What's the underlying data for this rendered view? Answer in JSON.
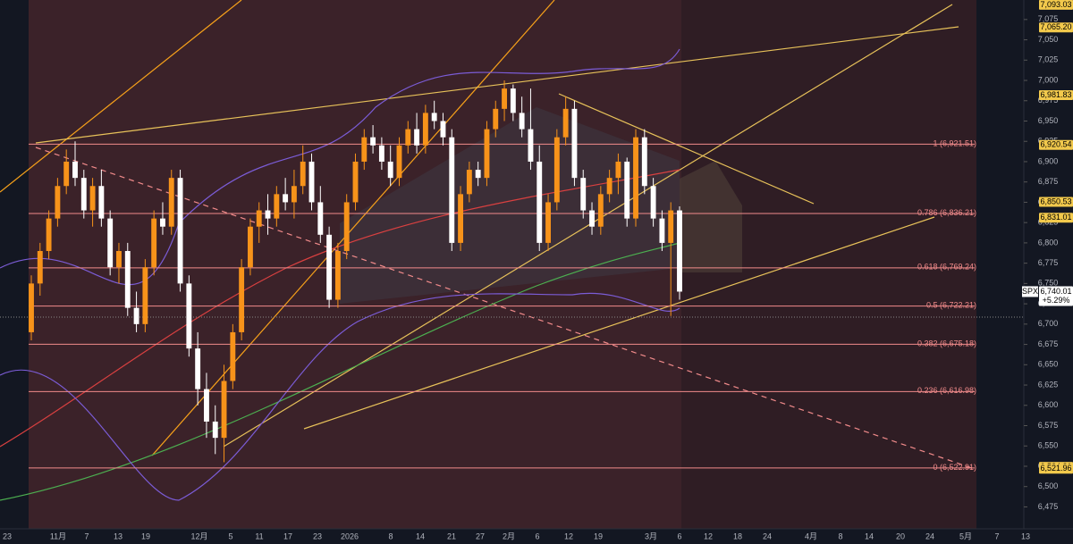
{
  "chart_data": {
    "type": "candlestick",
    "symbol": "SPX",
    "ylim": [
      6448,
      7099
    ],
    "yticks": [
      {
        "value": 6475,
        "label": "6,475"
      },
      {
        "value": 6500,
        "label": "6,500"
      },
      {
        "value": 6525,
        "label": "6,525"
      },
      {
        "value": 6550,
        "label": "6,550"
      },
      {
        "value": 6575,
        "label": "6,575"
      },
      {
        "value": 6600,
        "label": "6,600"
      },
      {
        "value": 6625,
        "label": "6,625"
      },
      {
        "value": 6650,
        "label": "6,650"
      },
      {
        "value": 6675,
        "label": "6,675"
      },
      {
        "value": 6700,
        "label": "6,700"
      },
      {
        "value": 6725,
        "label": "6,725"
      },
      {
        "value": 6750,
        "label": "6,750"
      },
      {
        "value": 6775,
        "label": "6,775"
      },
      {
        "value": 6800,
        "label": "6,800"
      },
      {
        "value": 6825,
        "label": "6,825"
      },
      {
        "value": 6850,
        "label": "6,850"
      },
      {
        "value": 6875,
        "label": "6,875"
      },
      {
        "value": 6900,
        "label": "6,900"
      },
      {
        "value": 6925,
        "label": "6,925"
      },
      {
        "value": 6950,
        "label": "6,950"
      },
      {
        "value": 6975,
        "label": "6,975"
      },
      {
        "value": 7000,
        "label": "7,000"
      },
      {
        "value": 7025,
        "label": "7,025"
      },
      {
        "value": 7050,
        "label": "7,050"
      },
      {
        "value": 7075,
        "label": "7,075"
      }
    ],
    "x_labels": [
      "23",
      "11月",
      "7",
      "13",
      "19",
      "12月",
      "5",
      "11",
      "17",
      "23",
      "2026",
      "8",
      "14",
      "21",
      "27",
      "2月",
      "6",
      "12",
      "19",
      "3月",
      "6",
      "12",
      "18",
      "24",
      "4月",
      "8",
      "14",
      "20",
      "24",
      "5月",
      "7",
      "13"
    ],
    "candles": {
      "open": [
        6690,
        6750,
        6790,
        6830,
        6870,
        6900,
        6880,
        6840,
        6870,
        6830,
        6770,
        6790,
        6720,
        6700,
        6770,
        6830,
        6820,
        6880,
        6750,
        6670,
        6620,
        6580,
        6560,
        6630,
        6690,
        6770,
        6820,
        6840,
        6830,
        6860,
        6850,
        6870,
        6900,
        6850,
        6810,
        6730,
        6790,
        6850,
        6900,
        6930,
        6920,
        6900,
        6880,
        6920,
        6940,
        6920,
        6960,
        6950,
        6930,
        6800,
        6860,
        6890,
        6880,
        6940,
        6965,
        6990,
        6960,
        6940,
        6900,
        6800,
        6850,
        6930,
        6965,
        6880,
        6840,
        6820,
        6860,
        6880,
        6900,
        6830,
        6930,
        6870,
        6830,
        6800,
        6840
      ],
      "high": [
        6760,
        6800,
        6840,
        6880,
        6915,
        6925,
        6890,
        6880,
        6890,
        6840,
        6800,
        6800,
        6740,
        6780,
        6840,
        6850,
        6890,
        6890,
        6760,
        6690,
        6640,
        6600,
        6650,
        6700,
        6780,
        6830,
        6850,
        6860,
        6870,
        6880,
        6890,
        6920,
        6910,
        6870,
        6820,
        6800,
        6860,
        6910,
        6940,
        6945,
        6930,
        6920,
        6930,
        6950,
        6960,
        6970,
        6975,
        6960,
        6940,
        6870,
        6900,
        6900,
        6950,
        6975,
        7000,
        6995,
        6980,
        6990,
        6920,
        6860,
        6940,
        6980,
        6975,
        6890,
        6850,
        6870,
        6890,
        6910,
        6905,
        6940,
        6940,
        6880,
        6840,
        6850,
        6845
      ],
      "low": [
        6680,
        6735,
        6780,
        6820,
        6860,
        6870,
        6830,
        6820,
        6820,
        6760,
        6750,
        6710,
        6690,
        6690,
        6760,
        6810,
        6810,
        6740,
        6660,
        6600,
        6560,
        6540,
        6530,
        6620,
        6680,
        6760,
        6800,
        6810,
        6820,
        6840,
        6830,
        6860,
        6840,
        6800,
        6720,
        6720,
        6780,
        6840,
        6890,
        6910,
        6890,
        6870,
        6870,
        6910,
        6910,
        6910,
        6940,
        6920,
        6790,
        6790,
        6850,
        6870,
        6870,
        6930,
        6950,
        6950,
        6930,
        6890,
        6790,
        6790,
        6840,
        6920,
        6870,
        6830,
        6810,
        6810,
        6850,
        6860,
        6820,
        6820,
        6860,
        6820,
        6790,
        6710,
        6730
      ],
      "close": [
        6750,
        6790,
        6830,
        6870,
        6900,
        6880,
        6840,
        6870,
        6830,
        6770,
        6790,
        6720,
        6700,
        6770,
        6830,
        6820,
        6880,
        6750,
        6670,
        6620,
        6580,
        6560,
        6630,
        6690,
        6770,
        6820,
        6840,
        6830,
        6860,
        6850,
        6870,
        6900,
        6850,
        6810,
        6730,
        6790,
        6850,
        6900,
        6930,
        6920,
        6900,
        6880,
        6920,
        6940,
        6920,
        6960,
        6950,
        6930,
        6800,
        6860,
        6890,
        6880,
        6940,
        6965,
        6990,
        6960,
        6940,
        6900,
        6800,
        6850,
        6930,
        6965,
        6880,
        6840,
        6820,
        6860,
        6880,
        6900,
        6830,
        6930,
        6870,
        6830,
        6800,
        6840,
        6740
      ]
    },
    "up_color": "#f7931a",
    "down_color": "#ffffff",
    "fib_levels": [
      {
        "label": "1 (6,921.51)",
        "value": 6921.51
      },
      {
        "label": "0.786 (6,836.21)",
        "value": 6836.21
      },
      {
        "label": "0.618 (6,769.24)",
        "value": 6769.24
      },
      {
        "label": "0.5 (6,722.21)",
        "value": 6722.21
      },
      {
        "label": "0.382 (6,675.18)",
        "value": 6675.18
      },
      {
        "label": "0.236 (6,616.98)",
        "value": 6616.98
      },
      {
        "label": "0 (6,522.91)",
        "value": 6522.91
      }
    ],
    "fib_color": "#f28b8b",
    "price_tags": [
      {
        "value": 7093.03,
        "label": "7,093.03"
      },
      {
        "value": 7065.2,
        "label": "7,065.20"
      },
      {
        "value": 6981.83,
        "label": "6,981.83"
      },
      {
        "value": 6920.54,
        "label": "6,920.54"
      },
      {
        "value": 6850.53,
        "label": "6,850.53"
      },
      {
        "value": 6831.01,
        "label": "6,831.01"
      },
      {
        "value": 6524.31,
        "label": "6,524.31"
      },
      {
        "value": 6521.96,
        "label": "6,521.96"
      }
    ],
    "last_price": {
      "value": 6740.01,
      "label": "6,740.01",
      "change": "+5.29%"
    }
  }
}
